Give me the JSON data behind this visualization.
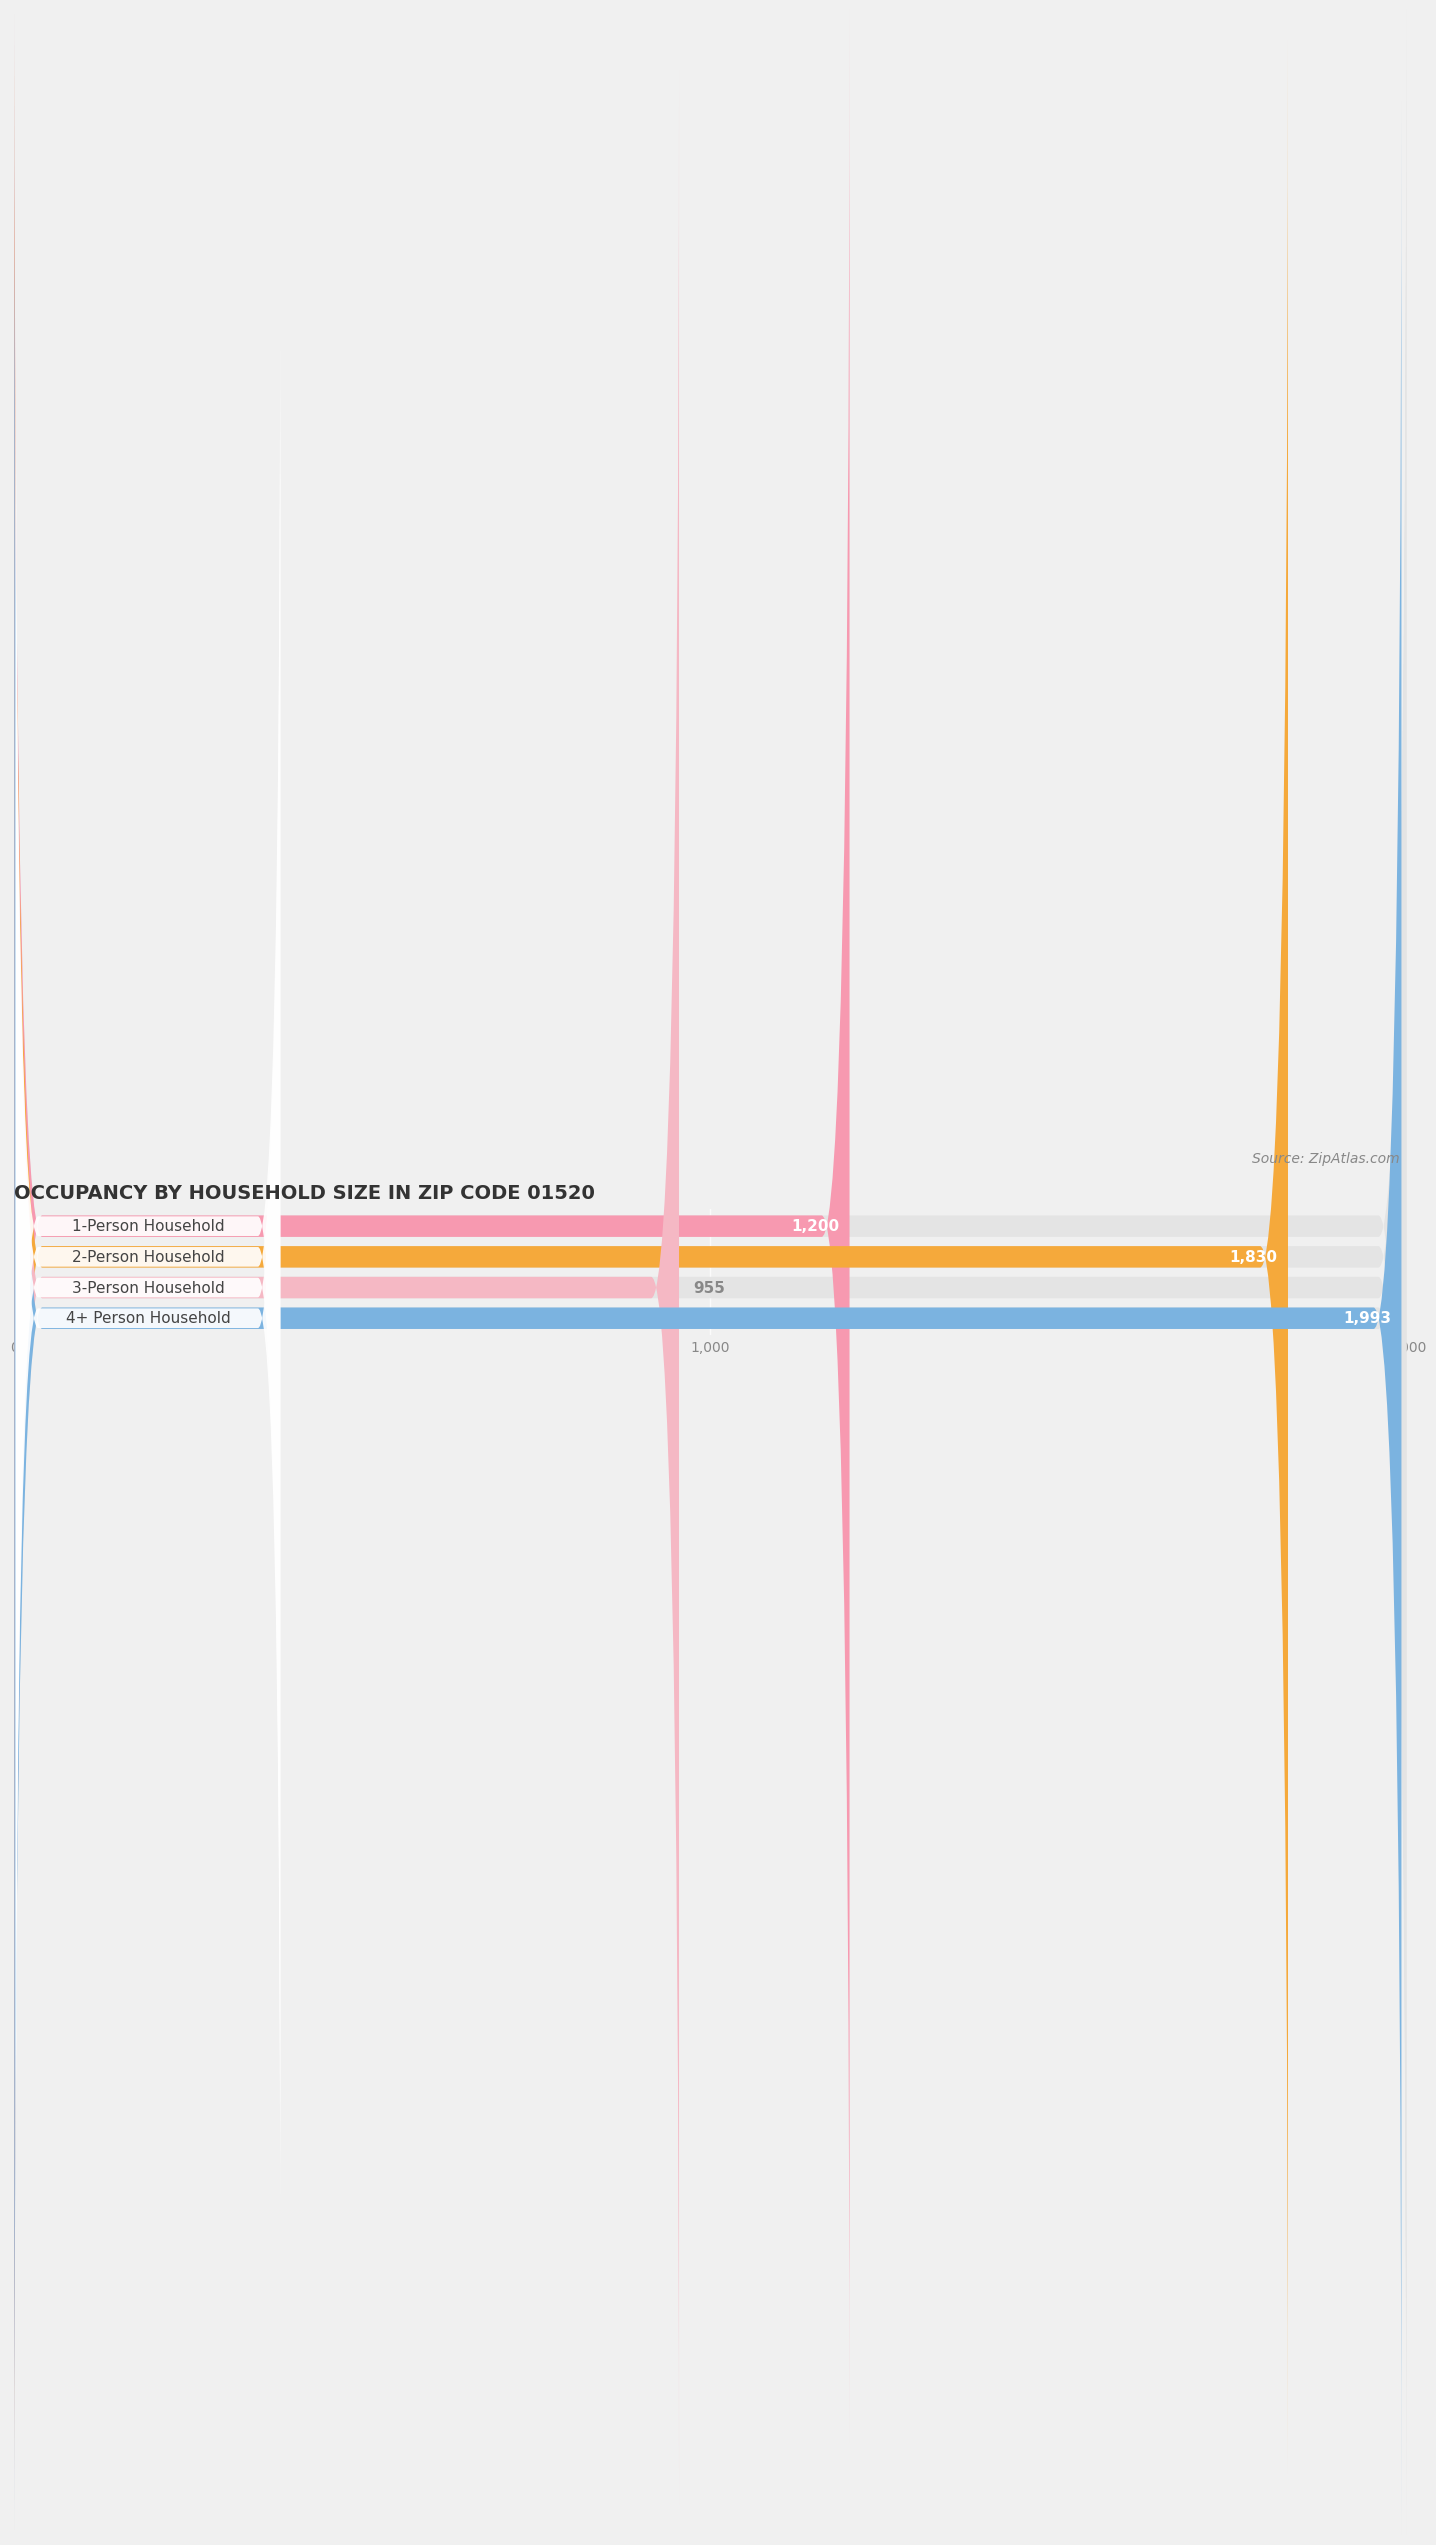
{
  "title": "OCCUPANCY BY HOUSEHOLD SIZE IN ZIP CODE 01520",
  "source": "Source: ZipAtlas.com",
  "categories": [
    "1-Person Household",
    "2-Person Household",
    "3-Person Household",
    "4+ Person Household"
  ],
  "values": [
    1200,
    1830,
    955,
    1993
  ],
  "bar_colors": [
    "#f799b0",
    "#f5a93b",
    "#f5b8c4",
    "#7bb3e0"
  ],
  "label_text_colors": [
    "#444444",
    "#444444",
    "#444444",
    "#444444"
  ],
  "value_colors": [
    "white",
    "white",
    "#888888",
    "white"
  ],
  "background_color": "#f0f0f0",
  "bar_bg_color": "#e4e4e4",
  "xlim": [
    0,
    2000
  ],
  "xticks": [
    0,
    1000,
    2000
  ],
  "xtick_labels": [
    "0",
    "1,000",
    "2,000"
  ],
  "bar_height": 0.7,
  "title_fontsize": 14,
  "source_fontsize": 10,
  "label_fontsize": 11,
  "value_fontsize": 11,
  "tick_fontsize": 10
}
